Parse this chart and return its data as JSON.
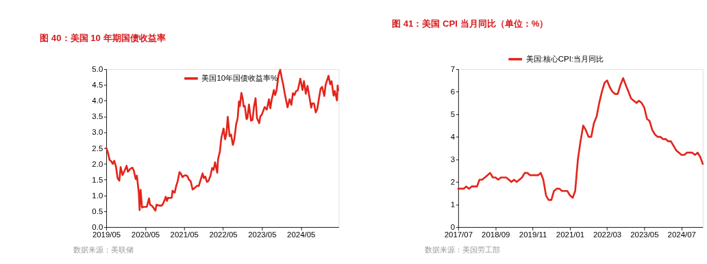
{
  "chart_data": [
    {
      "type": "line",
      "title": "图 40：美国 10 年期国债收益率",
      "annotations": [
        "数据来源：美联储"
      ],
      "legend": "top",
      "grid": false,
      "marker": "none",
      "line_style": "solid",
      "xlim": [
        "2019-05-01",
        "2025-04-20"
      ],
      "xticks": [
        {
          "value": "2019-05-01",
          "label": "2019/05"
        },
        {
          "value": "2020-05-01",
          "label": "2020/05"
        },
        {
          "value": "2021-05-01",
          "label": "2021/05"
        },
        {
          "value": "2022-05-01",
          "label": "2022/05"
        },
        {
          "value": "2023-05-01",
          "label": "2023/05"
        },
        {
          "value": "2024-05-01",
          "label": "2024/05"
        }
      ],
      "ylim": [
        0,
        5
      ],
      "yticks": [
        {
          "value": 0,
          "label": "0.0"
        },
        {
          "value": 0.5,
          "label": "0.5"
        },
        {
          "value": 1,
          "label": "1.0"
        },
        {
          "value": 1.5,
          "label": "1.5"
        },
        {
          "value": 2,
          "label": "2.0"
        },
        {
          "value": 2.5,
          "label": "2.5"
        },
        {
          "value": 3,
          "label": "3.0"
        },
        {
          "value": 3.5,
          "label": "3.5"
        },
        {
          "value": 4,
          "label": "4.0"
        },
        {
          "value": 4.5,
          "label": "4.5"
        },
        {
          "value": 5,
          "label": "5.0"
        }
      ],
      "x": [
        "2019-05-01",
        "2019-05-15",
        "2019-06-01",
        "2019-06-15",
        "2019-07-01",
        "2019-07-15",
        "2019-08-01",
        "2019-08-15",
        "2019-09-01",
        "2019-09-13",
        "2019-10-01",
        "2019-10-15",
        "2019-11-08",
        "2019-11-20",
        "2019-12-02",
        "2019-12-13",
        "2020-01-02",
        "2020-01-15",
        "2020-02-01",
        "2020-02-12",
        "2020-03-01",
        "2020-03-09",
        "2020-03-18",
        "2020-04-01",
        "2020-04-15",
        "2020-05-01",
        "2020-05-15",
        "2020-06-05",
        "2020-06-15",
        "2020-07-01",
        "2020-07-15",
        "2020-08-04",
        "2020-08-15",
        "2020-09-01",
        "2020-09-15",
        "2020-10-01",
        "2020-10-15",
        "2020-11-01",
        "2020-11-09",
        "2020-11-20",
        "2020-12-01",
        "2020-12-15",
        "2021-01-04",
        "2021-01-12",
        "2021-02-01",
        "2021-02-15",
        "2021-03-01",
        "2021-03-18",
        "2021-04-01",
        "2021-04-15",
        "2021-05-01",
        "2021-05-15",
        "2021-06-01",
        "2021-06-15",
        "2021-07-01",
        "2021-07-19",
        "2021-08-01",
        "2021-08-15",
        "2021-09-01",
        "2021-09-15",
        "2021-10-01",
        "2021-10-21",
        "2021-11-01",
        "2021-11-15",
        "2021-12-01",
        "2021-12-15",
        "2022-01-03",
        "2022-01-18",
        "2022-02-01",
        "2022-02-15",
        "2022-03-07",
        "2022-03-15",
        "2022-04-01",
        "2022-04-15",
        "2022-05-06",
        "2022-05-20",
        "2022-06-01",
        "2022-06-14",
        "2022-07-01",
        "2022-07-15",
        "2022-08-01",
        "2022-08-15",
        "2022-09-01",
        "2022-09-15",
        "2022-09-27",
        "2022-10-06",
        "2022-10-20",
        "2022-11-01",
        "2022-11-10",
        "2022-11-21",
        "2022-12-07",
        "2022-12-15",
        "2022-12-30",
        "2023-01-18",
        "2023-02-01",
        "2023-02-15",
        "2023-03-02",
        "2023-03-15",
        "2023-04-06",
        "2023-04-15",
        "2023-05-01",
        "2023-05-26",
        "2023-06-15",
        "2023-07-06",
        "2023-07-18",
        "2023-08-01",
        "2023-08-21",
        "2023-09-01",
        "2023-09-15",
        "2023-10-03",
        "2023-10-19",
        "2023-11-01",
        "2023-11-15",
        "2023-12-01",
        "2023-12-27",
        "2024-01-15",
        "2024-02-01",
        "2024-02-15",
        "2024-03-01",
        "2024-03-15",
        "2024-04-01",
        "2024-04-25",
        "2024-05-15",
        "2024-05-29",
        "2024-06-15",
        "2024-07-01",
        "2024-07-15",
        "2024-08-05",
        "2024-08-15",
        "2024-09-01",
        "2024-09-16",
        "2024-10-01",
        "2024-10-15",
        "2024-11-01",
        "2024-11-15",
        "2024-12-06",
        "2024-12-18",
        "2025-01-14",
        "2025-01-30",
        "2025-02-12",
        "2025-03-03",
        "2025-03-14",
        "2025-04-04",
        "2025-04-10",
        "2025-04-15"
      ],
      "series": [
        {
          "name": "美国10年国债收益率%",
          "color": "#e3241b",
          "values": [
            2.5,
            2.38,
            2.13,
            2.09,
            2.0,
            2.1,
            1.9,
            1.55,
            1.47,
            1.9,
            1.65,
            1.75,
            1.94,
            1.75,
            1.8,
            1.85,
            1.88,
            1.78,
            1.52,
            1.63,
            1.1,
            0.54,
            1.18,
            0.62,
            0.64,
            0.64,
            0.64,
            0.91,
            0.71,
            0.68,
            0.62,
            0.52,
            0.71,
            0.69,
            0.68,
            0.68,
            0.74,
            0.88,
            0.96,
            0.83,
            0.93,
            0.92,
            0.93,
            1.15,
            1.09,
            1.3,
            1.45,
            1.74,
            1.69,
            1.58,
            1.63,
            1.64,
            1.61,
            1.5,
            1.45,
            1.19,
            1.22,
            1.26,
            1.31,
            1.3,
            1.48,
            1.7,
            1.55,
            1.6,
            1.43,
            1.46,
            1.63,
            1.87,
            1.81,
            2.05,
            1.72,
            2.15,
            2.39,
            2.83,
            3.12,
            2.78,
            2.94,
            3.49,
            2.88,
            2.93,
            2.6,
            2.79,
            3.26,
            3.45,
            3.98,
            3.83,
            4.25,
            4.07,
            3.82,
            3.83,
            3.42,
            3.44,
            3.88,
            3.37,
            3.39,
            3.81,
            4.08,
            3.45,
            3.29,
            3.5,
            3.57,
            3.8,
            3.72,
            4.05,
            3.76,
            4.05,
            4.34,
            4.18,
            4.33,
            4.81,
            4.98,
            4.75,
            4.53,
            4.22,
            3.79,
            4.05,
            3.87,
            4.24,
            4.18,
            4.3,
            4.33,
            4.7,
            4.34,
            4.62,
            4.22,
            4.47,
            4.2,
            3.78,
            3.92,
            3.91,
            3.63,
            3.74,
            4.04,
            4.38,
            4.44,
            4.15,
            4.5,
            4.79,
            4.52,
            4.62,
            4.16,
            4.31,
            4.01,
            4.48,
            4.33
          ]
        }
      ]
    },
    {
      "type": "line",
      "title": "图 41：美国 CPI 当月同比（单位：%）",
      "annotations": [
        "数据来源：美国劳工部"
      ],
      "legend": "top",
      "grid": false,
      "marker": "none",
      "line_style": "solid",
      "xlim": [
        "2017-07",
        "2025-03"
      ],
      "xticks": [
        {
          "value": "2017-07",
          "label": "2017/07"
        },
        {
          "value": "2018-09",
          "label": "2018/09"
        },
        {
          "value": "2019-11",
          "label": "2019/11"
        },
        {
          "value": "2021-01",
          "label": "2021/01"
        },
        {
          "value": "2022-03",
          "label": "2022/03"
        },
        {
          "value": "2023-05",
          "label": "2023/05"
        },
        {
          "value": "2024-07",
          "label": "2024/07"
        }
      ],
      "ylim": [
        0,
        7
      ],
      "yticks": [
        0,
        1,
        2,
        3,
        4,
        5,
        6,
        7
      ],
      "x": [
        "2017-07",
        "2017-08",
        "2017-09",
        "2017-10",
        "2017-11",
        "2017-12",
        "2018-01",
        "2018-02",
        "2018-03",
        "2018-04",
        "2018-05",
        "2018-06",
        "2018-07",
        "2018-08",
        "2018-09",
        "2018-10",
        "2018-11",
        "2018-12",
        "2019-01",
        "2019-02",
        "2019-03",
        "2019-04",
        "2019-05",
        "2019-06",
        "2019-07",
        "2019-08",
        "2019-09",
        "2019-10",
        "2019-11",
        "2019-12",
        "2020-01",
        "2020-02",
        "2020-03",
        "2020-04",
        "2020-05",
        "2020-06",
        "2020-07",
        "2020-08",
        "2020-09",
        "2020-10",
        "2020-11",
        "2020-12",
        "2021-01",
        "2021-02",
        "2021-03",
        "2021-04",
        "2021-05",
        "2021-06",
        "2021-07",
        "2021-08",
        "2021-09",
        "2021-10",
        "2021-11",
        "2021-12",
        "2022-01",
        "2022-02",
        "2022-03",
        "2022-04",
        "2022-05",
        "2022-06",
        "2022-07",
        "2022-08",
        "2022-09",
        "2022-10",
        "2022-11",
        "2022-12",
        "2023-01",
        "2023-02",
        "2023-03",
        "2023-04",
        "2023-05",
        "2023-06",
        "2023-07",
        "2023-08",
        "2023-09",
        "2023-10",
        "2023-11",
        "2023-12",
        "2024-01",
        "2024-02",
        "2024-03",
        "2024-04",
        "2024-05",
        "2024-06",
        "2024-07",
        "2024-08",
        "2024-09",
        "2024-10",
        "2024-11",
        "2024-12",
        "2025-01",
        "2025-02",
        "2025-03"
      ],
      "series": [
        {
          "name": "美国:核心CPI:当月同比",
          "color": "#e3241b",
          "values": [
            1.7,
            1.7,
            1.7,
            1.8,
            1.7,
            1.8,
            1.8,
            1.8,
            2.1,
            2.1,
            2.2,
            2.3,
            2.4,
            2.2,
            2.2,
            2.1,
            2.2,
            2.2,
            2.2,
            2.1,
            2.0,
            2.1,
            2.0,
            2.1,
            2.2,
            2.4,
            2.4,
            2.3,
            2.3,
            2.3,
            2.3,
            2.4,
            2.1,
            1.4,
            1.2,
            1.2,
            1.6,
            1.7,
            1.7,
            1.6,
            1.6,
            1.6,
            1.4,
            1.3,
            1.6,
            3.0,
            3.8,
            4.5,
            4.3,
            4.0,
            4.0,
            4.6,
            4.9,
            5.5,
            6.0,
            6.4,
            6.5,
            6.2,
            6.0,
            5.9,
            5.9,
            6.3,
            6.6,
            6.3,
            6.0,
            5.7,
            5.6,
            5.5,
            5.6,
            5.5,
            5.3,
            4.8,
            4.7,
            4.3,
            4.1,
            4.0,
            4.0,
            3.9,
            3.9,
            3.8,
            3.8,
            3.6,
            3.4,
            3.3,
            3.2,
            3.2,
            3.3,
            3.3,
            3.3,
            3.2,
            3.3,
            3.1,
            2.8
          ]
        }
      ]
    }
  ]
}
